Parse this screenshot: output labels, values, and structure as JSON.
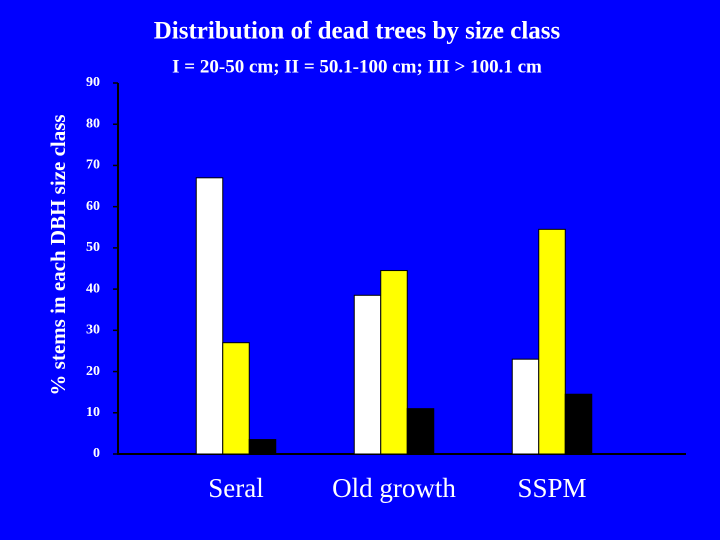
{
  "chart_data": {
    "type": "bar",
    "title": "Distribution of dead trees by size class",
    "subtitle": "I = 20-50 cm; II = 50.1-100 cm; III > 100.1 cm",
    "y_label": "% stems in each DBH size class",
    "categories": [
      "Seral",
      "Old growth",
      "SSPM"
    ],
    "series": [
      {
        "color": "#ffffff",
        "values": [
          67,
          38.5,
          23
        ]
      },
      {
        "color": "#ffff00",
        "values": [
          27,
          44.5,
          54.5
        ]
      },
      {
        "color": "#000000",
        "values": [
          3.5,
          11,
          14.5
        ]
      }
    ],
    "ylim": [
      0,
      90
    ],
    "yticks": [
      0,
      10,
      20,
      30,
      40,
      50,
      60,
      70,
      80,
      90
    ]
  }
}
